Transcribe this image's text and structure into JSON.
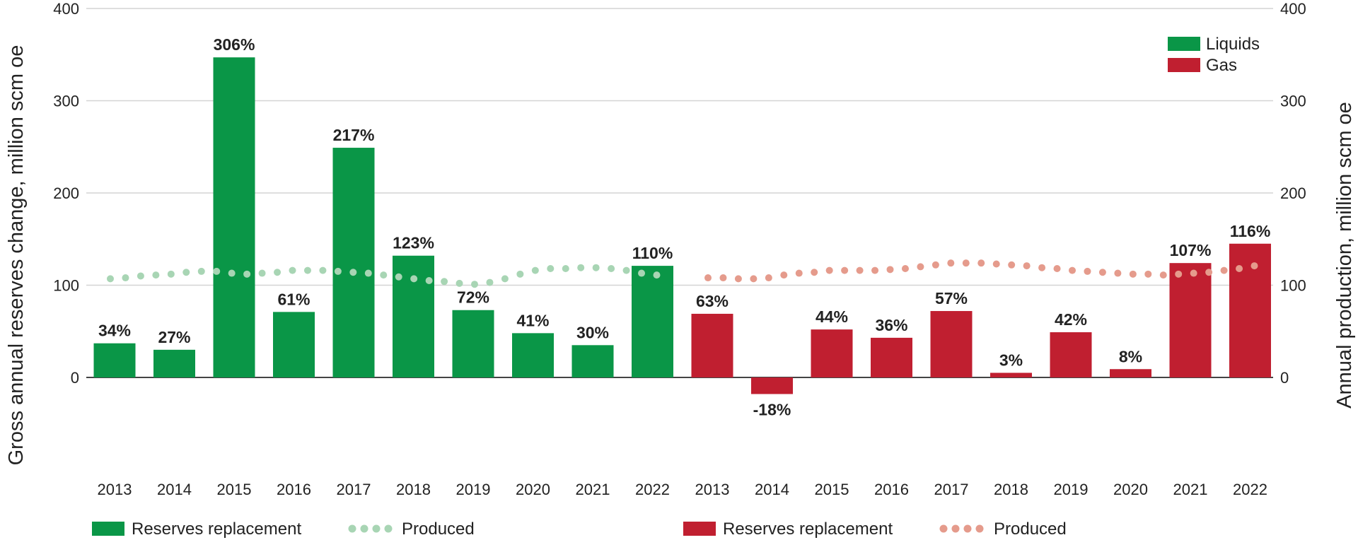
{
  "chart_data": {
    "type": "bar",
    "categories": [
      "2013",
      "2014",
      "2015",
      "2016",
      "2017",
      "2018",
      "2019",
      "2020",
      "2021",
      "2022"
    ],
    "series": [
      {
        "name": "Liquids",
        "group": "liquids",
        "color": "#0a9647",
        "values": [
          37,
          30,
          347,
          71,
          249,
          132,
          73,
          48,
          35,
          121
        ],
        "labels": [
          "34%",
          "27%",
          "306%",
          "61%",
          "217%",
          "123%",
          "72%",
          "41%",
          "30%",
          "110%"
        ],
        "produced": [
          107,
          108,
          110,
          111,
          112,
          114,
          115,
          115,
          113,
          112,
          113,
          114,
          116,
          116,
          116,
          115,
          114,
          113,
          111,
          109,
          107,
          105,
          104,
          102,
          101,
          103,
          107,
          112,
          116,
          118,
          118,
          119,
          119,
          118,
          116,
          113,
          111
        ]
      },
      {
        "name": "Gas",
        "group": "gas",
        "color": "#c01f30",
        "values": [
          69,
          -18,
          52,
          43,
          72,
          5,
          49,
          9,
          124,
          145
        ],
        "labels": [
          "63%",
          "-18%",
          "44%",
          "36%",
          "57%",
          "3%",
          "42%",
          "8%",
          "107%",
          "116%"
        ],
        "produced": [
          108,
          108,
          107,
          107,
          108,
          111,
          113,
          114,
          116,
          116,
          116,
          116,
          117,
          118,
          120,
          122,
          124,
          124,
          124,
          123,
          122,
          121,
          119,
          118,
          116,
          115,
          114,
          113,
          112,
          112,
          111,
          112,
          113,
          114,
          116,
          118,
          121
        ]
      }
    ],
    "produced_colors": {
      "liquids": "#a8d5b4",
      "gas": "#e59b8c"
    },
    "y_left_ticks": [
      "0",
      "100",
      "200",
      "300",
      "400"
    ],
    "y_right_ticks": [
      "0",
      "100",
      "200",
      "300",
      "400"
    ],
    "ylim": [
      0,
      400
    ],
    "ylabel": "Gross annual reserves change, million scm oe",
    "ylabel_right": "Annual production, million scm oe",
    "legend": {
      "position": "top-right",
      "items": [
        "Liquids",
        "Gas"
      ]
    },
    "bottom_legend": {
      "liquids_bar": "Reserves replacement",
      "liquids_dots": "Produced",
      "gas_bar": "Reserves replacement",
      "gas_dots": "Produced"
    },
    "grid": true
  }
}
